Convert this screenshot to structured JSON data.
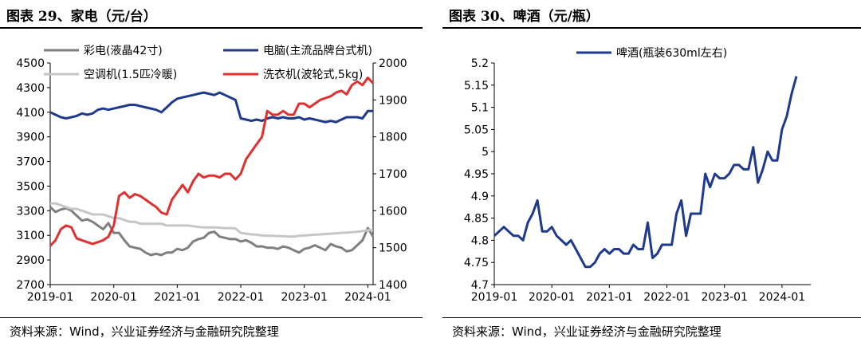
{
  "chart_data": [
    {
      "type": "line",
      "title": "图表 29、家电（元/台）",
      "source": "资料来源：Wind，兴业证券经济与金融研究院整理",
      "x_ticks": [
        "2019-01",
        "2020-01",
        "2021-01",
        "2022-01",
        "2023-01",
        "2024-01"
      ],
      "y_left": {
        "range": [
          2700,
          4500
        ],
        "ticks": [
          2700,
          2900,
          3100,
          3300,
          3500,
          3700,
          3900,
          4100,
          4300,
          4500
        ]
      },
      "y_right": {
        "range": [
          1400,
          2000
        ],
        "ticks": [
          1400,
          1500,
          1600,
          1700,
          1800,
          1900,
          2000
        ]
      },
      "legend_position": "top",
      "grid": false,
      "series": [
        {
          "name": "彩电(液晶42寸)",
          "color": "#7f7f7f",
          "axis": "left",
          "values": [
            3330,
            3290,
            3310,
            3320,
            3300,
            3260,
            3220,
            3230,
            3210,
            3180,
            3150,
            3200,
            3120,
            3120,
            3060,
            3010,
            3000,
            2990,
            2960,
            2940,
            2950,
            2940,
            2960,
            2960,
            2990,
            2980,
            3000,
            3050,
            3070,
            3080,
            3120,
            3130,
            3090,
            3080,
            3070,
            3070,
            3050,
            3060,
            3040,
            3010,
            3010,
            3000,
            3000,
            2990,
            3010,
            3000,
            2980,
            2960,
            2990,
            3000,
            3020,
            3000,
            2980,
            3030,
            3010,
            3000,
            2970,
            2980,
            3020,
            3060,
            3160,
            3090
          ]
        },
        {
          "name": "电脑(主流品牌台式机)",
          "color": "#1f3a8c",
          "axis": "left",
          "values": [
            4100,
            4080,
            4060,
            4050,
            4060,
            4070,
            4090,
            4080,
            4090,
            4120,
            4130,
            4120,
            4130,
            4140,
            4150,
            4160,
            4160,
            4150,
            4140,
            4130,
            4120,
            4100,
            4140,
            4180,
            4210,
            4220,
            4230,
            4240,
            4250,
            4260,
            4250,
            4240,
            4260,
            4240,
            4220,
            4200,
            4050,
            4040,
            4030,
            4040,
            4030,
            4050,
            4060,
            4050,
            4060,
            4050,
            4050,
            4060,
            4040,
            4050,
            4040,
            4030,
            4020,
            4030,
            4020,
            4040,
            4060,
            4060,
            4060,
            4050,
            4110,
            4110
          ]
        },
        {
          "name": "空调机(1.5匹冷暖)",
          "color": "#c6c6c6",
          "axis": "right",
          "values": [
            1620,
            1620,
            1615,
            1610,
            1605,
            1605,
            1600,
            1595,
            1590,
            1590,
            1590,
            1585,
            1580,
            1580,
            1575,
            1570,
            1570,
            1565,
            1565,
            1565,
            1565,
            1565,
            1560,
            1560,
            1560,
            1560,
            1560,
            1558,
            1556,
            1555,
            1555,
            1555,
            1554,
            1553,
            1553,
            1552,
            1540,
            1538,
            1536,
            1535,
            1533,
            1532,
            1532,
            1531,
            1531,
            1530,
            1530,
            1532,
            1533,
            1534,
            1535,
            1536,
            1537,
            1538,
            1539,
            1540,
            1541,
            1542,
            1543,
            1545,
            1547,
            1548
          ]
        },
        {
          "name": "洗衣机(波轮式,5kg)",
          "color": "#e03030",
          "axis": "right",
          "values": [
            1505,
            1520,
            1550,
            1560,
            1555,
            1525,
            1520,
            1515,
            1510,
            1515,
            1520,
            1530,
            1560,
            1640,
            1650,
            1635,
            1645,
            1640,
            1630,
            1620,
            1610,
            1595,
            1590,
            1630,
            1650,
            1670,
            1650,
            1680,
            1700,
            1690,
            1695,
            1695,
            1690,
            1700,
            1700,
            1685,
            1700,
            1740,
            1760,
            1780,
            1800,
            1870,
            1860,
            1860,
            1870,
            1860,
            1860,
            1890,
            1890,
            1880,
            1890,
            1900,
            1905,
            1910,
            1920,
            1925,
            1915,
            1940,
            1950,
            1940,
            1960,
            1945
          ]
        }
      ]
    },
    {
      "type": "line",
      "title": "图表 30、啤酒（元/瓶）",
      "source": "资料来源：Wind，兴业证券经济与金融研究院整理",
      "x_ticks": [
        "2019-01",
        "2020-01",
        "2021-01",
        "2022-01",
        "2023-01",
        "2024-01"
      ],
      "y_left": {
        "range": [
          4.7,
          5.2
        ],
        "ticks": [
          "4.7",
          "4.75",
          "4.8",
          "4.85",
          "4.9",
          "4.95",
          "5",
          "5.05",
          "5.1",
          "5.15",
          "5.2"
        ]
      },
      "legend_position": "top",
      "grid": false,
      "series": [
        {
          "name": "啤酒(瓶装630ml左右)",
          "color": "#1f3a8c",
          "axis": "left",
          "values": [
            4.81,
            4.82,
            4.83,
            4.82,
            4.81,
            4.81,
            4.8,
            4.84,
            4.86,
            4.89,
            4.82,
            4.82,
            4.83,
            4.81,
            4.8,
            4.79,
            4.8,
            4.78,
            4.76,
            4.74,
            4.74,
            4.75,
            4.77,
            4.78,
            4.77,
            4.78,
            4.78,
            4.77,
            4.77,
            4.79,
            4.78,
            4.78,
            4.84,
            4.76,
            4.77,
            4.79,
            4.79,
            4.79,
            4.86,
            4.89,
            4.81,
            4.86,
            4.86,
            4.86,
            4.95,
            4.92,
            4.95,
            4.94,
            4.94,
            4.95,
            4.97,
            4.97,
            4.96,
            4.96,
            5.01,
            4.93,
            4.96,
            5.0,
            4.98,
            4.98,
            5.05,
            5.08,
            5.13,
            5.17
          ]
        }
      ]
    }
  ]
}
